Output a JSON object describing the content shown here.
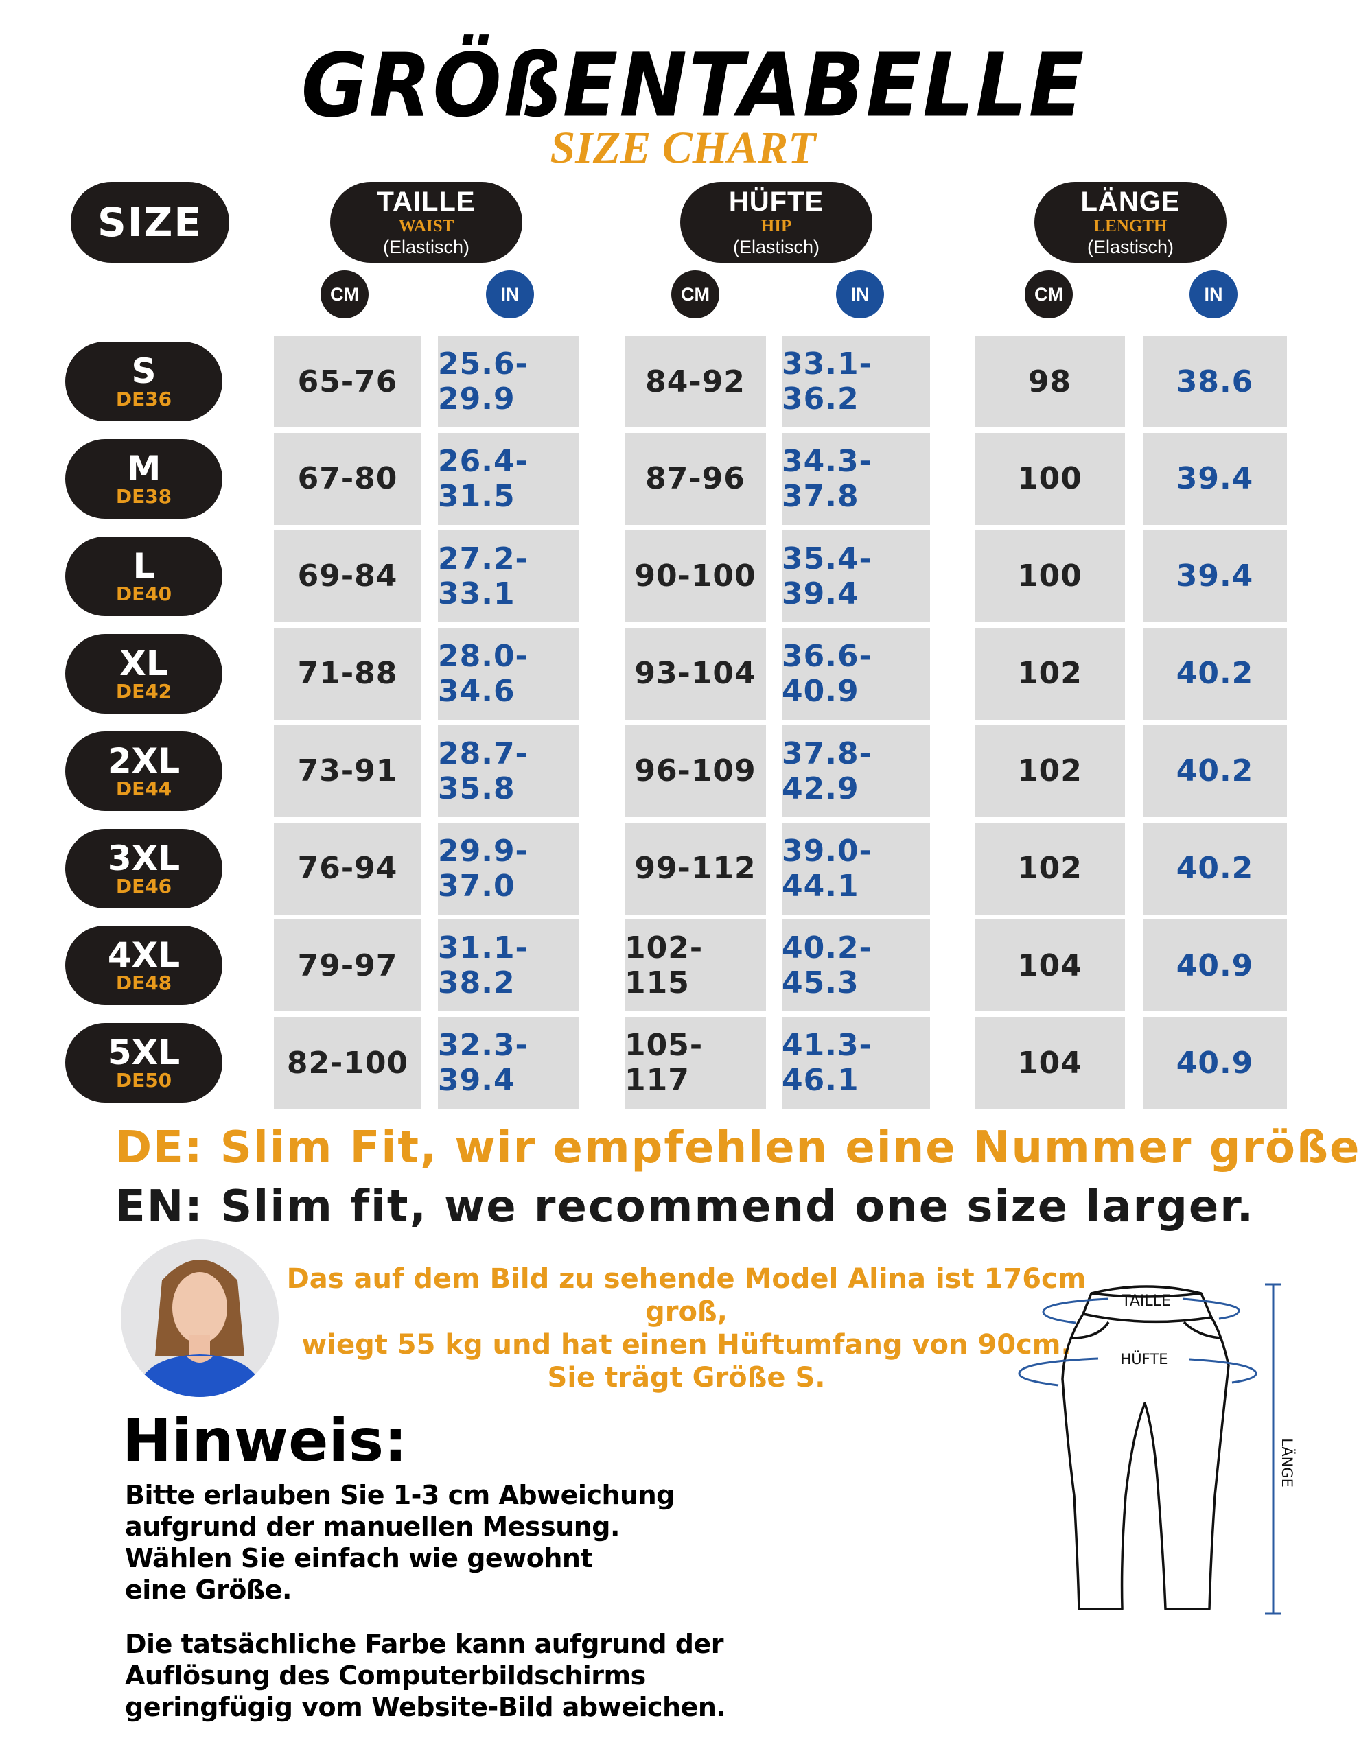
{
  "title": "GRÖßENTABELLE",
  "subtitle": "SIZE CHART",
  "colors": {
    "dark": "#1f1b1a",
    "orange": "#e89a1c",
    "blue": "#1b4f9a",
    "cell": "#dcdcdc"
  },
  "header": {
    "size_label": "SIZE",
    "groups": [
      {
        "de": "TAILLE",
        "en": "WAIST",
        "note": "(Elastisch)",
        "units": [
          "CM",
          "IN"
        ]
      },
      {
        "de": "HÜFTE",
        "en": "HIP",
        "note": "(Elastisch)",
        "units": [
          "CM",
          "IN"
        ]
      },
      {
        "de": "LÄNGE",
        "en": "LENGTH",
        "note": "(Elastisch)",
        "units": [
          "CM",
          "IN"
        ]
      }
    ]
  },
  "rows": [
    {
      "size": "S",
      "de": "DE36",
      "values": [
        "65-76",
        "25.6-29.9",
        "84-92",
        "33.1-36.2",
        "98",
        "38.6"
      ]
    },
    {
      "size": "M",
      "de": "DE38",
      "values": [
        "67-80",
        "26.4-31.5",
        "87-96",
        "34.3-37.8",
        "100",
        "39.4"
      ]
    },
    {
      "size": "L",
      "de": "DE40",
      "values": [
        "69-84",
        "27.2-33.1",
        "90-100",
        "35.4-39.4",
        "100",
        "39.4"
      ]
    },
    {
      "size": "XL",
      "de": "DE42",
      "values": [
        "71-88",
        "28.0-34.6",
        "93-104",
        "36.6-40.9",
        "102",
        "40.2"
      ]
    },
    {
      "size": "2XL",
      "de": "DE44",
      "values": [
        "73-91",
        "28.7-35.8",
        "96-109",
        "37.8-42.9",
        "102",
        "40.2"
      ]
    },
    {
      "size": "3XL",
      "de": "DE46",
      "values": [
        "76-94",
        "29.9-37.0",
        "99-112",
        "39.0-44.1",
        "102",
        "40.2"
      ]
    },
    {
      "size": "4XL",
      "de": "DE48",
      "values": [
        "79-97",
        "31.1-38.2",
        "102-115",
        "40.2-45.3",
        "104",
        "40.9"
      ]
    },
    {
      "size": "5XL",
      "de": "DE50",
      "values": [
        "82-100",
        "32.3-39.4",
        "105-117",
        "41.3-46.1",
        "104",
        "40.9"
      ]
    }
  ],
  "fit": {
    "de_prefix": "DE:",
    "de_text": "Slim Fit, wir empfehlen eine Nummer größer.",
    "en_prefix": "EN:",
    "en_text": "Slim fit, we recommend one size larger."
  },
  "model": {
    "lines": [
      "Das auf dem Bild zu sehende Model Alina ist 176cm groß,",
      "wiegt 55 kg und hat einen Hüftumfang von 90cm.",
      "Sie trägt Größe S."
    ]
  },
  "hinweis": {
    "title": "Hinweis:",
    "para1": [
      "Bitte erlauben Sie 1-3 cm Abweichung",
      "aufgrund der manuellen Messung.",
      "Wählen Sie einfach wie gewohnt",
      "eine Größe."
    ],
    "para2": [
      "Die tatsächliche Farbe kann aufgrund der",
      "Auflösung des Computerbildschirms",
      "geringfügig vom Website-Bild abweichen."
    ]
  },
  "diagram": {
    "waist": "TAILLE",
    "hip": "HÜFTE",
    "length": "LÄNGE"
  }
}
